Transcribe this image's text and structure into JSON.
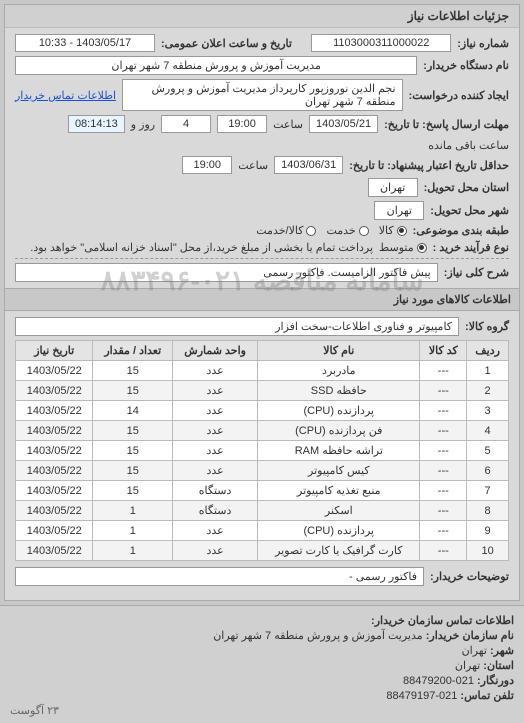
{
  "panel_title": "جزئیات اطلاعات نیاز",
  "fields": {
    "req_no": {
      "label": "شماره نیاز:",
      "value": "1103000311000022"
    },
    "pub_datetime": {
      "label": "تاریخ و ساعت اعلان عمومی:",
      "value": "1403/05/17 - 10:33"
    },
    "buyer_org": {
      "label": "نام دستگاه خریدار:",
      "value": "مدیریت آموزش و پرورش منطقه 7 شهر تهران"
    },
    "requester": {
      "label": "ایجاد کننده درخواست:",
      "value": "نجم الدین نوروزپور کارپرداز مدیریت آموزش و پرورش منطقه 7 شهر تهران"
    },
    "buyer_contact_link": "اطلاعات تماس خریدار",
    "deadline_send": {
      "label": "مهلت ارسال پاسخ: تا تاریخ:",
      "date": "1403/05/21",
      "time_label": "ساعت",
      "time": "19:00",
      "days": "4",
      "and_label": "روز و",
      "remain": "08:14:13",
      "remain_label": "ساعت باقی مانده"
    },
    "valid_until": {
      "label": "حداقل تاریخ اعتبار پیشنهاد: تا تاریخ:",
      "date": "1403/06/31",
      "time_label": "ساعت",
      "time": "19:00"
    },
    "province": {
      "label": "استان محل تحویل:",
      "value": "تهران"
    },
    "city": {
      "label": "شهر محل تحویل:",
      "value": "تهران"
    },
    "category": {
      "label": "طبقه بندی موضوعی:",
      "options": [
        {
          "label": "کالا",
          "selected": true
        },
        {
          "label": "خدمت",
          "selected": false
        },
        {
          "label": "کالا/خدمت",
          "selected": false
        }
      ]
    },
    "purchase_type": {
      "label": "نوع فرآیند خرید :",
      "options": [
        {
          "label": "متوسط",
          "selected": true
        }
      ],
      "note": "پرداخت تمام یا بخشی از مبلغ خرید،از محل \"اسناد خزانه اسلامی\" خواهد بود."
    },
    "summary": {
      "label": "شرح کلی نیاز:",
      "value": "پیش فاکتور الزامیست. فاکتور رسمی"
    },
    "goods_section": "اطلاعات کالاهای مورد نیاز",
    "goods_group": {
      "label": "گروه کالا:",
      "value": "کامپیوتر و فناوری اطلاعات-سخت افزار"
    },
    "buyer_note": {
      "label": "توضیحات خریدار:",
      "value": "فاکتور رسمی -"
    }
  },
  "table": {
    "columns": [
      "ردیف",
      "کد کالا",
      "نام کالا",
      "واحد شمارش",
      "تعداد / مقدار",
      "تاریخ نیاز"
    ],
    "rows": [
      [
        "1",
        "---",
        "مادربرد",
        "عدد",
        "15",
        "1403/05/22"
      ],
      [
        "2",
        "---",
        "حافظه SSD",
        "عدد",
        "15",
        "1403/05/22"
      ],
      [
        "3",
        "---",
        "پردازنده (CPU)",
        "عدد",
        "14",
        "1403/05/22"
      ],
      [
        "4",
        "---",
        "فن پردازنده (CPU)",
        "عدد",
        "15",
        "1403/05/22"
      ],
      [
        "5",
        "---",
        "تراشه حافظه RAM",
        "عدد",
        "15",
        "1403/05/22"
      ],
      [
        "6",
        "---",
        "کیس کامپیوتر",
        "عدد",
        "15",
        "1403/05/22"
      ],
      [
        "7",
        "---",
        "منبع تغذیه کامپیوتر",
        "دستگاه",
        "15",
        "1403/05/22"
      ],
      [
        "8",
        "---",
        "اسکنر",
        "دستگاه",
        "1",
        "1403/05/22"
      ],
      [
        "9",
        "---",
        "پردازنده (CPU)",
        "عدد",
        "1",
        "1403/05/22"
      ],
      [
        "10",
        "---",
        "کارت گرافیک یا کارت تصویر",
        "عدد",
        "1",
        "1403/05/22"
      ]
    ]
  },
  "watermark": "سامانه مناقصه ۰۲۱-۸۸۳۴۹۶",
  "footer": {
    "title": "اطلاعات تماس سازمان خریدار:",
    "lines": [
      {
        "label": "نام سازمان خریدار:",
        "value": "مدیریت آموزش و پرورش منطقه 7 شهر تهران"
      },
      {
        "label": "شهر:",
        "value": "تهران"
      },
      {
        "label": "استان:",
        "value": "تهران"
      },
      {
        "label": "دورنگار:",
        "value": "021-88479200"
      },
      {
        "label": "تلفن تماس:",
        "value": "021-88479197"
      }
    ],
    "bottom_left": "۲۳ آگوست"
  }
}
